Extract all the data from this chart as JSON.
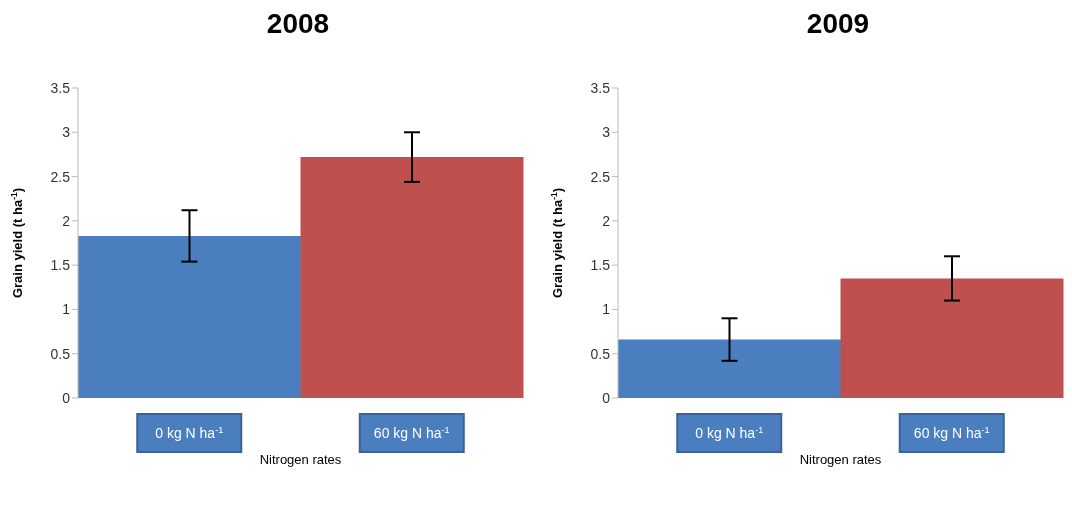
{
  "chart_data": [
    {
      "type": "bar",
      "title": "2008",
      "xlabel": "Nitrogen rates",
      "ylabel": "Grain yield (t ha$^{-1}$)",
      "categories": [
        "0 kg N ha$^{-1}$",
        "60 kg N ha$^{-1}$"
      ],
      "values": [
        1.83,
        2.72
      ],
      "errors": [
        0.29,
        0.28
      ],
      "colors": [
        "#4a7ebf",
        "#c0504d"
      ],
      "ylim": [
        0,
        3.5
      ],
      "yticks": [
        0,
        0.5,
        1,
        1.5,
        2,
        2.5,
        3,
        3.5
      ]
    },
    {
      "type": "bar",
      "title": "2009",
      "xlabel": "Nitrogen rates",
      "ylabel": "Grain yield (t ha$^{-1}$)",
      "categories": [
        "0 kg N ha$^{-1}$",
        "60 kg N ha$^{-1}$"
      ],
      "values": [
        0.66,
        1.35
      ],
      "errors": [
        0.24,
        0.25
      ],
      "colors": [
        "#4a7ebf",
        "#c0504d"
      ],
      "ylim": [
        0,
        3.5
      ],
      "yticks": [
        0,
        0.5,
        1,
        1.5,
        2,
        2.5,
        3,
        3.5
      ]
    }
  ]
}
